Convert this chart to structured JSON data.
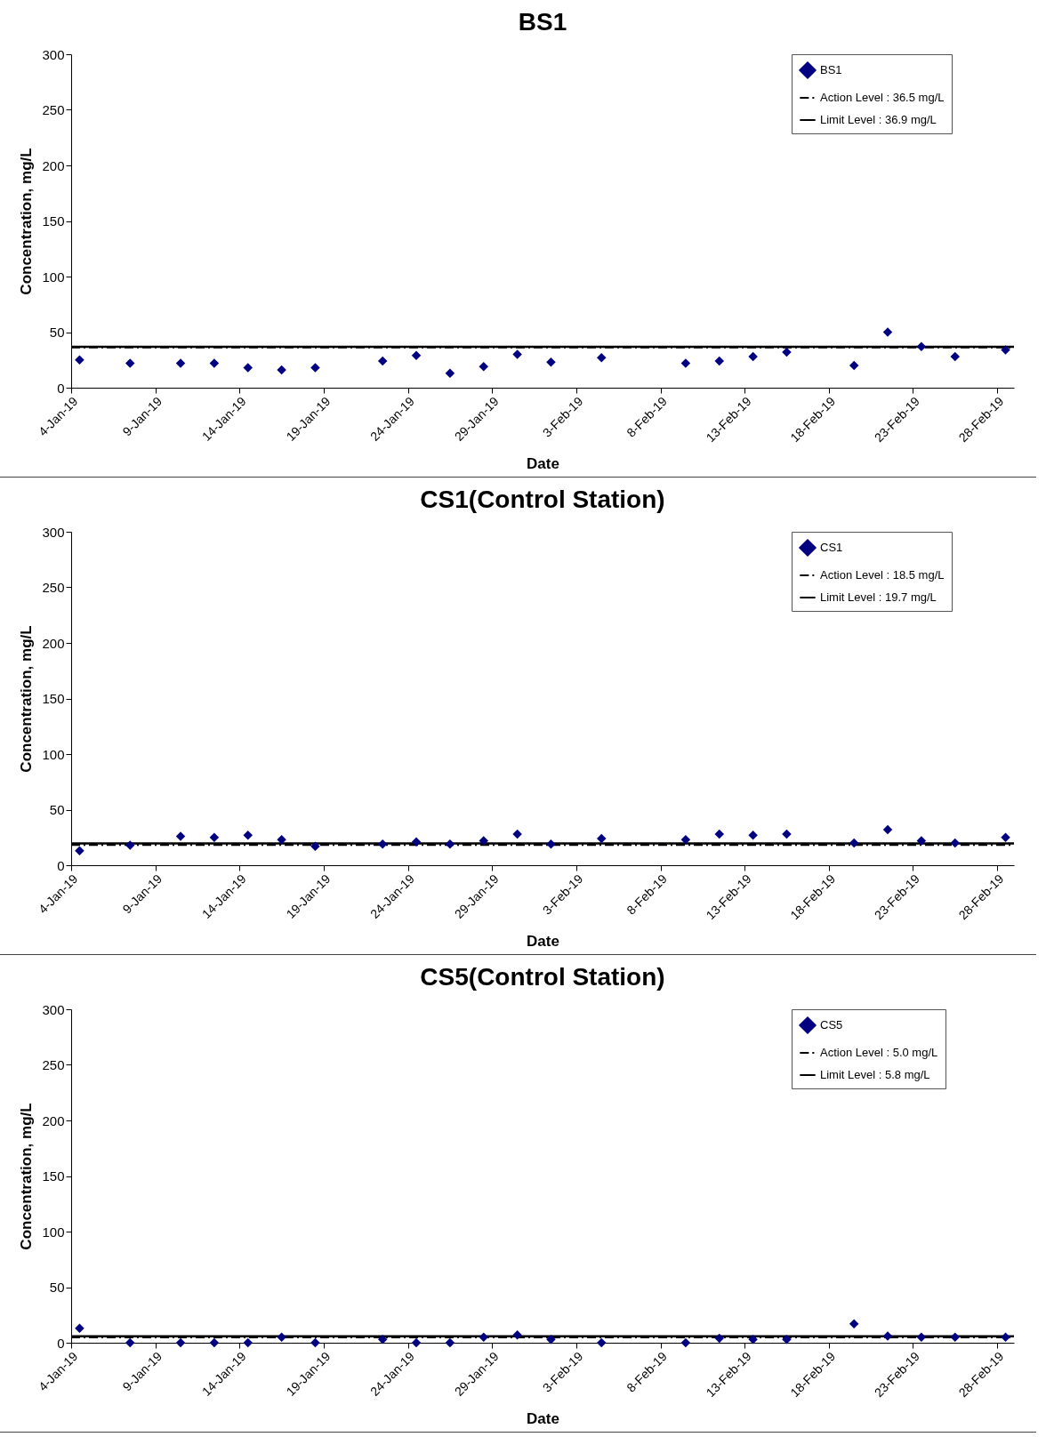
{
  "chart_data": [
    {
      "type": "scatter",
      "title": "BS1",
      "xlabel": "Date",
      "ylabel": "Concentration, mg/L",
      "x": [
        "--01-04T12:00",
        "--01-07T12:00",
        "--01-10T12:00",
        "--01-12T12:00",
        "--01-14T12:00",
        "--01-16T12:00",
        "--01-18T12:00",
        "--01-22T12:00",
        "--01-24T12:00",
        "--01-26T12:00",
        "--01-28T12:00",
        "--01-30T12:00",
        "--02-01T12:00",
        "--02-04T12:00",
        "--02-09T12:00",
        "--02-11T12:00",
        "--02-13T12:00",
        "--02-15T12:00",
        "--02-19T12:00",
        "--02-21T12:00",
        "--02-23T12:00",
        "--02-25T12:00",
        "--02-28T12:00"
      ],
      "series": [
        {
          "name": "BS1",
          "color": "#000080",
          "values": [
            25,
            22,
            22,
            22,
            18,
            16,
            18,
            24,
            29,
            13,
            19,
            30,
            23,
            27,
            22,
            24,
            28,
            32,
            20,
            50,
            37,
            28,
            34
          ]
        }
      ],
      "xlim": [
        "--01-04",
        "--03-01"
      ],
      "xticks": [
        {
          "value": "--01-04",
          "label": "4-Jan-19"
        },
        {
          "value": "--01-09",
          "label": "9-Jan-19"
        },
        {
          "value": "--01-14",
          "label": "14-Jan-19"
        },
        {
          "value": "--01-19",
          "label": "19-Jan-19"
        },
        {
          "value": "--01-24",
          "label": "24-Jan-19"
        },
        {
          "value": "--01-29",
          "label": "29-Jan-19"
        },
        {
          "value": "--02-03",
          "label": "3-Feb-19"
        },
        {
          "value": "--02-08",
          "label": "8-Feb-19"
        },
        {
          "value": "--02-13",
          "label": "13-Feb-19"
        },
        {
          "value": "--02-18",
          "label": "18-Feb-19"
        },
        {
          "value": "--02-23",
          "label": "23-Feb-19"
        },
        {
          "value": "--02-28",
          "label": "28-Feb-19"
        }
      ],
      "ylim": [
        0,
        300
      ],
      "yticks": [
        0,
        50,
        100,
        150,
        200,
        250,
        300
      ],
      "marker": "diamond",
      "legend": "top right",
      "grid": false,
      "ref_lines": [
        {
          "axis": "y",
          "value": 36.5,
          "label": "Action Level : 36.5 mg/L",
          "color": "#000000",
          "line_style": "dashed"
        },
        {
          "axis": "y",
          "value": 36.9,
          "label": "Limit Level : 36.9 mg/L",
          "color": "#000000",
          "line_style": "solid"
        }
      ]
    },
    {
      "type": "scatter",
      "title": "CS1(Control Station)",
      "xlabel": "Date",
      "ylabel": "Concentration, mg/L",
      "x": [
        "--01-04T12:00",
        "--01-07T12:00",
        "--01-10T12:00",
        "--01-12T12:00",
        "--01-14T12:00",
        "--01-16T12:00",
        "--01-18T12:00",
        "--01-22T12:00",
        "--01-24T12:00",
        "--01-26T12:00",
        "--01-28T12:00",
        "--01-30T12:00",
        "--02-01T12:00",
        "--02-04T12:00",
        "--02-09T12:00",
        "--02-11T12:00",
        "--02-13T12:00",
        "--02-15T12:00",
        "--02-19T12:00",
        "--02-21T12:00",
        "--02-23T12:00",
        "--02-25T12:00",
        "--02-28T12:00"
      ],
      "series": [
        {
          "name": "CS1",
          "color": "#000080",
          "values": [
            13,
            18,
            26,
            25,
            27,
            23,
            17,
            19,
            21,
            19,
            22,
            28,
            19,
            24,
            23,
            28,
            27,
            28,
            20,
            32,
            22,
            20,
            25
          ]
        }
      ],
      "xlim": [
        "--01-04",
        "--03-01"
      ],
      "xticks": [
        {
          "value": "--01-04",
          "label": "4-Jan-19"
        },
        {
          "value": "--01-09",
          "label": "9-Jan-19"
        },
        {
          "value": "--01-14",
          "label": "14-Jan-19"
        },
        {
          "value": "--01-19",
          "label": "19-Jan-19"
        },
        {
          "value": "--01-24",
          "label": "24-Jan-19"
        },
        {
          "value": "--01-29",
          "label": "29-Jan-19"
        },
        {
          "value": "--02-03",
          "label": "3-Feb-19"
        },
        {
          "value": "--02-08",
          "label": "8-Feb-19"
        },
        {
          "value": "--02-13",
          "label": "13-Feb-19"
        },
        {
          "value": "--02-18",
          "label": "18-Feb-19"
        },
        {
          "value": "--02-23",
          "label": "23-Feb-19"
        },
        {
          "value": "--02-28",
          "label": "28-Feb-19"
        }
      ],
      "ylim": [
        0,
        300
      ],
      "yticks": [
        0,
        50,
        100,
        150,
        200,
        250,
        300
      ],
      "marker": "diamond",
      "legend": "top right",
      "grid": false,
      "ref_lines": [
        {
          "axis": "y",
          "value": 18.5,
          "label": "Action Level : 18.5 mg/L",
          "color": "#000000",
          "line_style": "dashed"
        },
        {
          "axis": "y",
          "value": 19.7,
          "label": "Limit Level : 19.7 mg/L",
          "color": "#000000",
          "line_style": "solid"
        }
      ]
    },
    {
      "type": "scatter",
      "title": "CS5(Control Station)",
      "xlabel": "Date",
      "ylabel": "Concentration, mg/L",
      "x": [
        "--01-04T12:00",
        "--01-07T12:00",
        "--01-10T12:00",
        "--01-12T12:00",
        "--01-14T12:00",
        "--01-16T12:00",
        "--01-18T12:00",
        "--01-22T12:00",
        "--01-24T12:00",
        "--01-26T12:00",
        "--01-28T12:00",
        "--01-30T12:00",
        "--02-01T12:00",
        "--02-04T12:00",
        "--02-09T12:00",
        "--02-11T12:00",
        "--02-13T12:00",
        "--02-15T12:00",
        "--02-19T12:00",
        "--02-21T12:00",
        "--02-23T12:00",
        "--02-25T12:00",
        "--02-28T12:00"
      ],
      "series": [
        {
          "name": "CS5",
          "color": "#000080",
          "values": [
            13,
            0,
            0,
            0,
            0,
            5,
            0,
            3,
            0,
            0,
            5,
            7,
            3,
            0,
            0,
            4,
            3,
            3,
            17,
            6,
            5,
            5,
            5
          ]
        }
      ],
      "xlim": [
        "--01-04",
        "--03-01"
      ],
      "xticks": [
        {
          "value": "--01-04",
          "label": "4-Jan-19"
        },
        {
          "value": "--01-09",
          "label": "9-Jan-19"
        },
        {
          "value": "--01-14",
          "label": "14-Jan-19"
        },
        {
          "value": "--01-19",
          "label": "19-Jan-19"
        },
        {
          "value": "--01-24",
          "label": "24-Jan-19"
        },
        {
          "value": "--01-29",
          "label": "29-Jan-19"
        },
        {
          "value": "--02-03",
          "label": "3-Feb-19"
        },
        {
          "value": "--02-08",
          "label": "8-Feb-19"
        },
        {
          "value": "--02-13",
          "label": "13-Feb-19"
        },
        {
          "value": "--02-18",
          "label": "18-Feb-19"
        },
        {
          "value": "--02-23",
          "label": "23-Feb-19"
        },
        {
          "value": "--02-28",
          "label": "28-Feb-19"
        }
      ],
      "ylim": [
        0,
        300
      ],
      "yticks": [
        0,
        50,
        100,
        150,
        200,
        250,
        300
      ],
      "marker": "diamond",
      "legend": "top right",
      "grid": false,
      "ref_lines": [
        {
          "axis": "y",
          "value": 5.0,
          "label": "Action Level : 5.0 mg/L",
          "color": "#000000",
          "line_style": "dashed"
        },
        {
          "axis": "y",
          "value": 5.8,
          "label": "Limit Level : 5.8 mg/L",
          "color": "#000000",
          "line_style": "solid"
        }
      ]
    }
  ]
}
